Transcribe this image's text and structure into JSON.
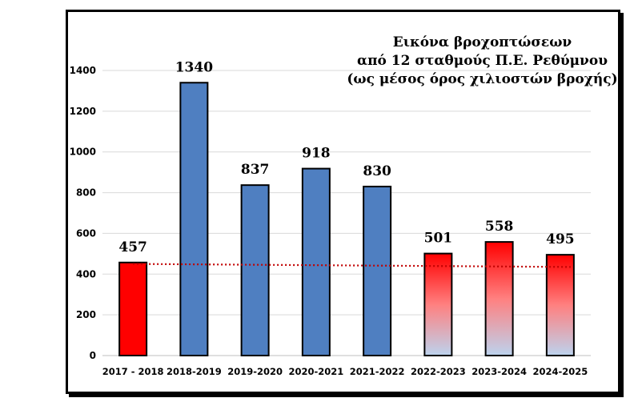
{
  "chart_data": {
    "type": "bar",
    "title_lines": [
      "Εικόνα βροχοπτώσεων",
      "από 12 σταθμούς Π.Ε. Ρεθύμνου",
      "(ως μέσος όρος χιλιοστών βροχής)"
    ],
    "categories": [
      "2017 - 2018",
      "2018-2019",
      "2019-2020",
      "2020-2021",
      "2021-2022",
      "2022-2023",
      "2023-2024",
      "2024-2025"
    ],
    "values": [
      457,
      1340,
      837,
      918,
      830,
      501,
      558,
      495
    ],
    "data_labels": [
      "457",
      "1340",
      "837",
      "918",
      "830",
      "501",
      "558",
      "495"
    ],
    "bar_styles": [
      "red",
      "blue",
      "blue",
      "blue",
      "blue",
      "red-fade",
      "red-fade",
      "red-fade"
    ],
    "colors": {
      "blue": "#4f7fc1",
      "red": "#ff0000",
      "fade_bottom": "#bcd3ee",
      "trendline": "#c00000",
      "grid": "#d9d9d9"
    },
    "ylim": [
      0,
      1400
    ],
    "yticks": [
      0,
      200,
      400,
      600,
      800,
      1000,
      1200,
      1400
    ],
    "trendline": {
      "type": "linear",
      "style": "dotted",
      "start": 450,
      "end": 435
    },
    "grid": true,
    "xlabel": "",
    "ylabel": ""
  }
}
